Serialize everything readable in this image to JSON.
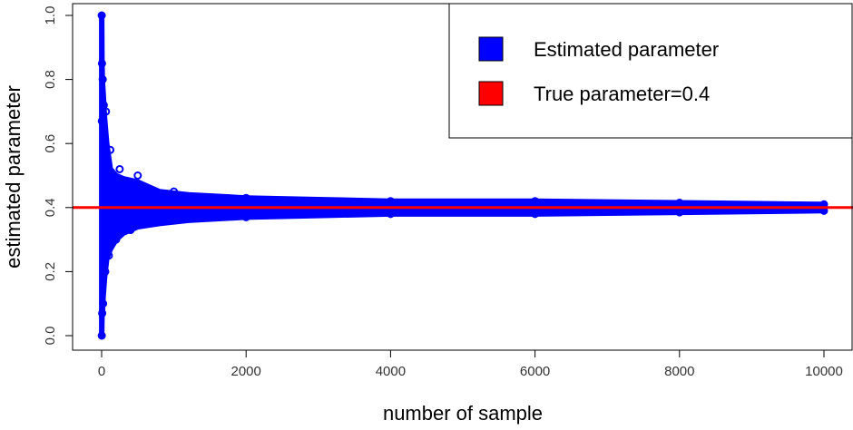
{
  "chart_data": {
    "type": "scatter",
    "xlabel": "number of sample",
    "ylabel": "estimated parameter",
    "xlim": [
      0,
      10000
    ],
    "ylim": [
      0,
      1
    ],
    "x_ticks": [
      0,
      2000,
      4000,
      6000,
      8000,
      10000
    ],
    "y_ticks": [
      0.0,
      0.2,
      0.4,
      0.6,
      0.8,
      1.0
    ],
    "x_tick_labels": [
      "0",
      "2000",
      "4000",
      "6000",
      "8000",
      "10000"
    ],
    "y_tick_labels": [
      "0.0",
      "0.2",
      "0.4",
      "0.6",
      "0.8",
      "1.0"
    ],
    "grid": false,
    "legend": {
      "placement": "top-right",
      "entries": [
        {
          "label": "Estimated parameter",
          "color": "#0000ff"
        },
        {
          "label": "True parameter=0.4",
          "color": "#ff0000"
        }
      ]
    },
    "series": [
      {
        "name": "Estimated parameter",
        "color": "#0000ff",
        "points": [
          {
            "x": 1,
            "y": 1.0
          },
          {
            "x": 2,
            "y": 0.0
          },
          {
            "x": 3,
            "y": 0.67
          },
          {
            "x": 5,
            "y": 0.85
          },
          {
            "x": 8,
            "y": 0.07
          },
          {
            "x": 15,
            "y": 0.8
          },
          {
            "x": 20,
            "y": 0.1
          },
          {
            "x": 30,
            "y": 0.72
          },
          {
            "x": 50,
            "y": 0.2
          },
          {
            "x": 60,
            "y": 0.7
          },
          {
            "x": 100,
            "y": 0.25
          },
          {
            "x": 120,
            "y": 0.58
          },
          {
            "x": 200,
            "y": 0.3
          },
          {
            "x": 250,
            "y": 0.52
          },
          {
            "x": 400,
            "y": 0.33
          },
          {
            "x": 500,
            "y": 0.5
          },
          {
            "x": 1000,
            "y": 0.36
          },
          {
            "x": 1000,
            "y": 0.45
          },
          {
            "x": 2000,
            "y": 0.37
          },
          {
            "x": 2000,
            "y": 0.43
          },
          {
            "x": 4000,
            "y": 0.38
          },
          {
            "x": 4000,
            "y": 0.42
          },
          {
            "x": 6000,
            "y": 0.38
          },
          {
            "x": 6000,
            "y": 0.42
          },
          {
            "x": 8000,
            "y": 0.385
          },
          {
            "x": 8000,
            "y": 0.415
          },
          {
            "x": 10000,
            "y": 0.39
          },
          {
            "x": 10000,
            "y": 0.41
          }
        ],
        "envelope": {
          "x": [
            1,
            5,
            10,
            20,
            40,
            70,
            120,
            200,
            300,
            500,
            800,
            1200,
            2000,
            3000,
            4000,
            6000,
            8000,
            10000
          ],
          "upper": [
            1.0,
            0.85,
            0.8,
            0.76,
            0.68,
            0.6,
            0.52,
            0.5,
            0.49,
            0.48,
            0.45,
            0.44,
            0.43,
            0.425,
            0.42,
            0.42,
            0.415,
            0.41
          ],
          "lower": [
            0.0,
            0.06,
            0.07,
            0.12,
            0.18,
            0.24,
            0.27,
            0.3,
            0.32,
            0.34,
            0.35,
            0.36,
            0.37,
            0.375,
            0.38,
            0.38,
            0.385,
            0.39
          ]
        }
      },
      {
        "name": "True parameter=0.4",
        "color": "#ff0000",
        "type": "hline",
        "y": 0.4
      }
    ]
  }
}
